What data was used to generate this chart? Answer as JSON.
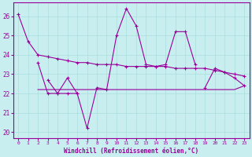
{
  "xlabel": "Windchill (Refroidissement éolien,°C)",
  "background_color": "#c8eef0",
  "grid_color": "#aadddd",
  "line_color": "#990099",
  "x": [
    0,
    1,
    2,
    3,
    4,
    5,
    6,
    7,
    8,
    9,
    10,
    11,
    12,
    13,
    14,
    15,
    16,
    17,
    18,
    19,
    20,
    21,
    22,
    23
  ],
  "curve_top": [
    26.1,
    24.7,
    24.0,
    23.9,
    23.8,
    23.7,
    23.6,
    23.6,
    23.5,
    23.5,
    23.5,
    23.4,
    23.4,
    23.4,
    23.4,
    23.4,
    23.3,
    23.3,
    23.3,
    23.3,
    23.2,
    23.1,
    23.0,
    22.9
  ],
  "curve_volatile": [
    null,
    null,
    null,
    22.7,
    22.0,
    22.8,
    22.0,
    20.2,
    22.3,
    22.2,
    25.0,
    26.4,
    25.5,
    23.5,
    23.4,
    23.5,
    25.2,
    25.2,
    23.5,
    null,
    null,
    null,
    null,
    null
  ],
  "curve_bottom": [
    null,
    null,
    23.6,
    22.0,
    22.0,
    22.0,
    22.0,
    null,
    null,
    null,
    null,
    null,
    null,
    null,
    null,
    null,
    null,
    null,
    null,
    null,
    null,
    null,
    null,
    null
  ],
  "curve_flat_low": [
    null,
    null,
    22.2,
    22.2,
    22.2,
    22.2,
    22.2,
    22.2,
    22.2,
    22.2,
    22.2,
    22.2,
    22.2,
    22.2,
    22.2,
    22.2,
    22.2,
    22.2,
    22.2,
    22.2,
    22.2,
    22.2,
    22.2,
    22.4
  ],
  "curve_end": [
    null,
    null,
    null,
    null,
    null,
    null,
    null,
    null,
    null,
    null,
    null,
    null,
    null,
    null,
    null,
    null,
    null,
    null,
    null,
    22.3,
    23.3,
    23.1,
    22.8,
    22.4
  ],
  "ylim": [
    19.7,
    26.7
  ],
  "yticks": [
    20,
    21,
    22,
    23,
    24,
    25,
    26
  ],
  "xticks": [
    0,
    1,
    2,
    3,
    4,
    5,
    6,
    7,
    8,
    9,
    10,
    11,
    12,
    13,
    14,
    15,
    16,
    17,
    18,
    19,
    20,
    21,
    22,
    23
  ]
}
